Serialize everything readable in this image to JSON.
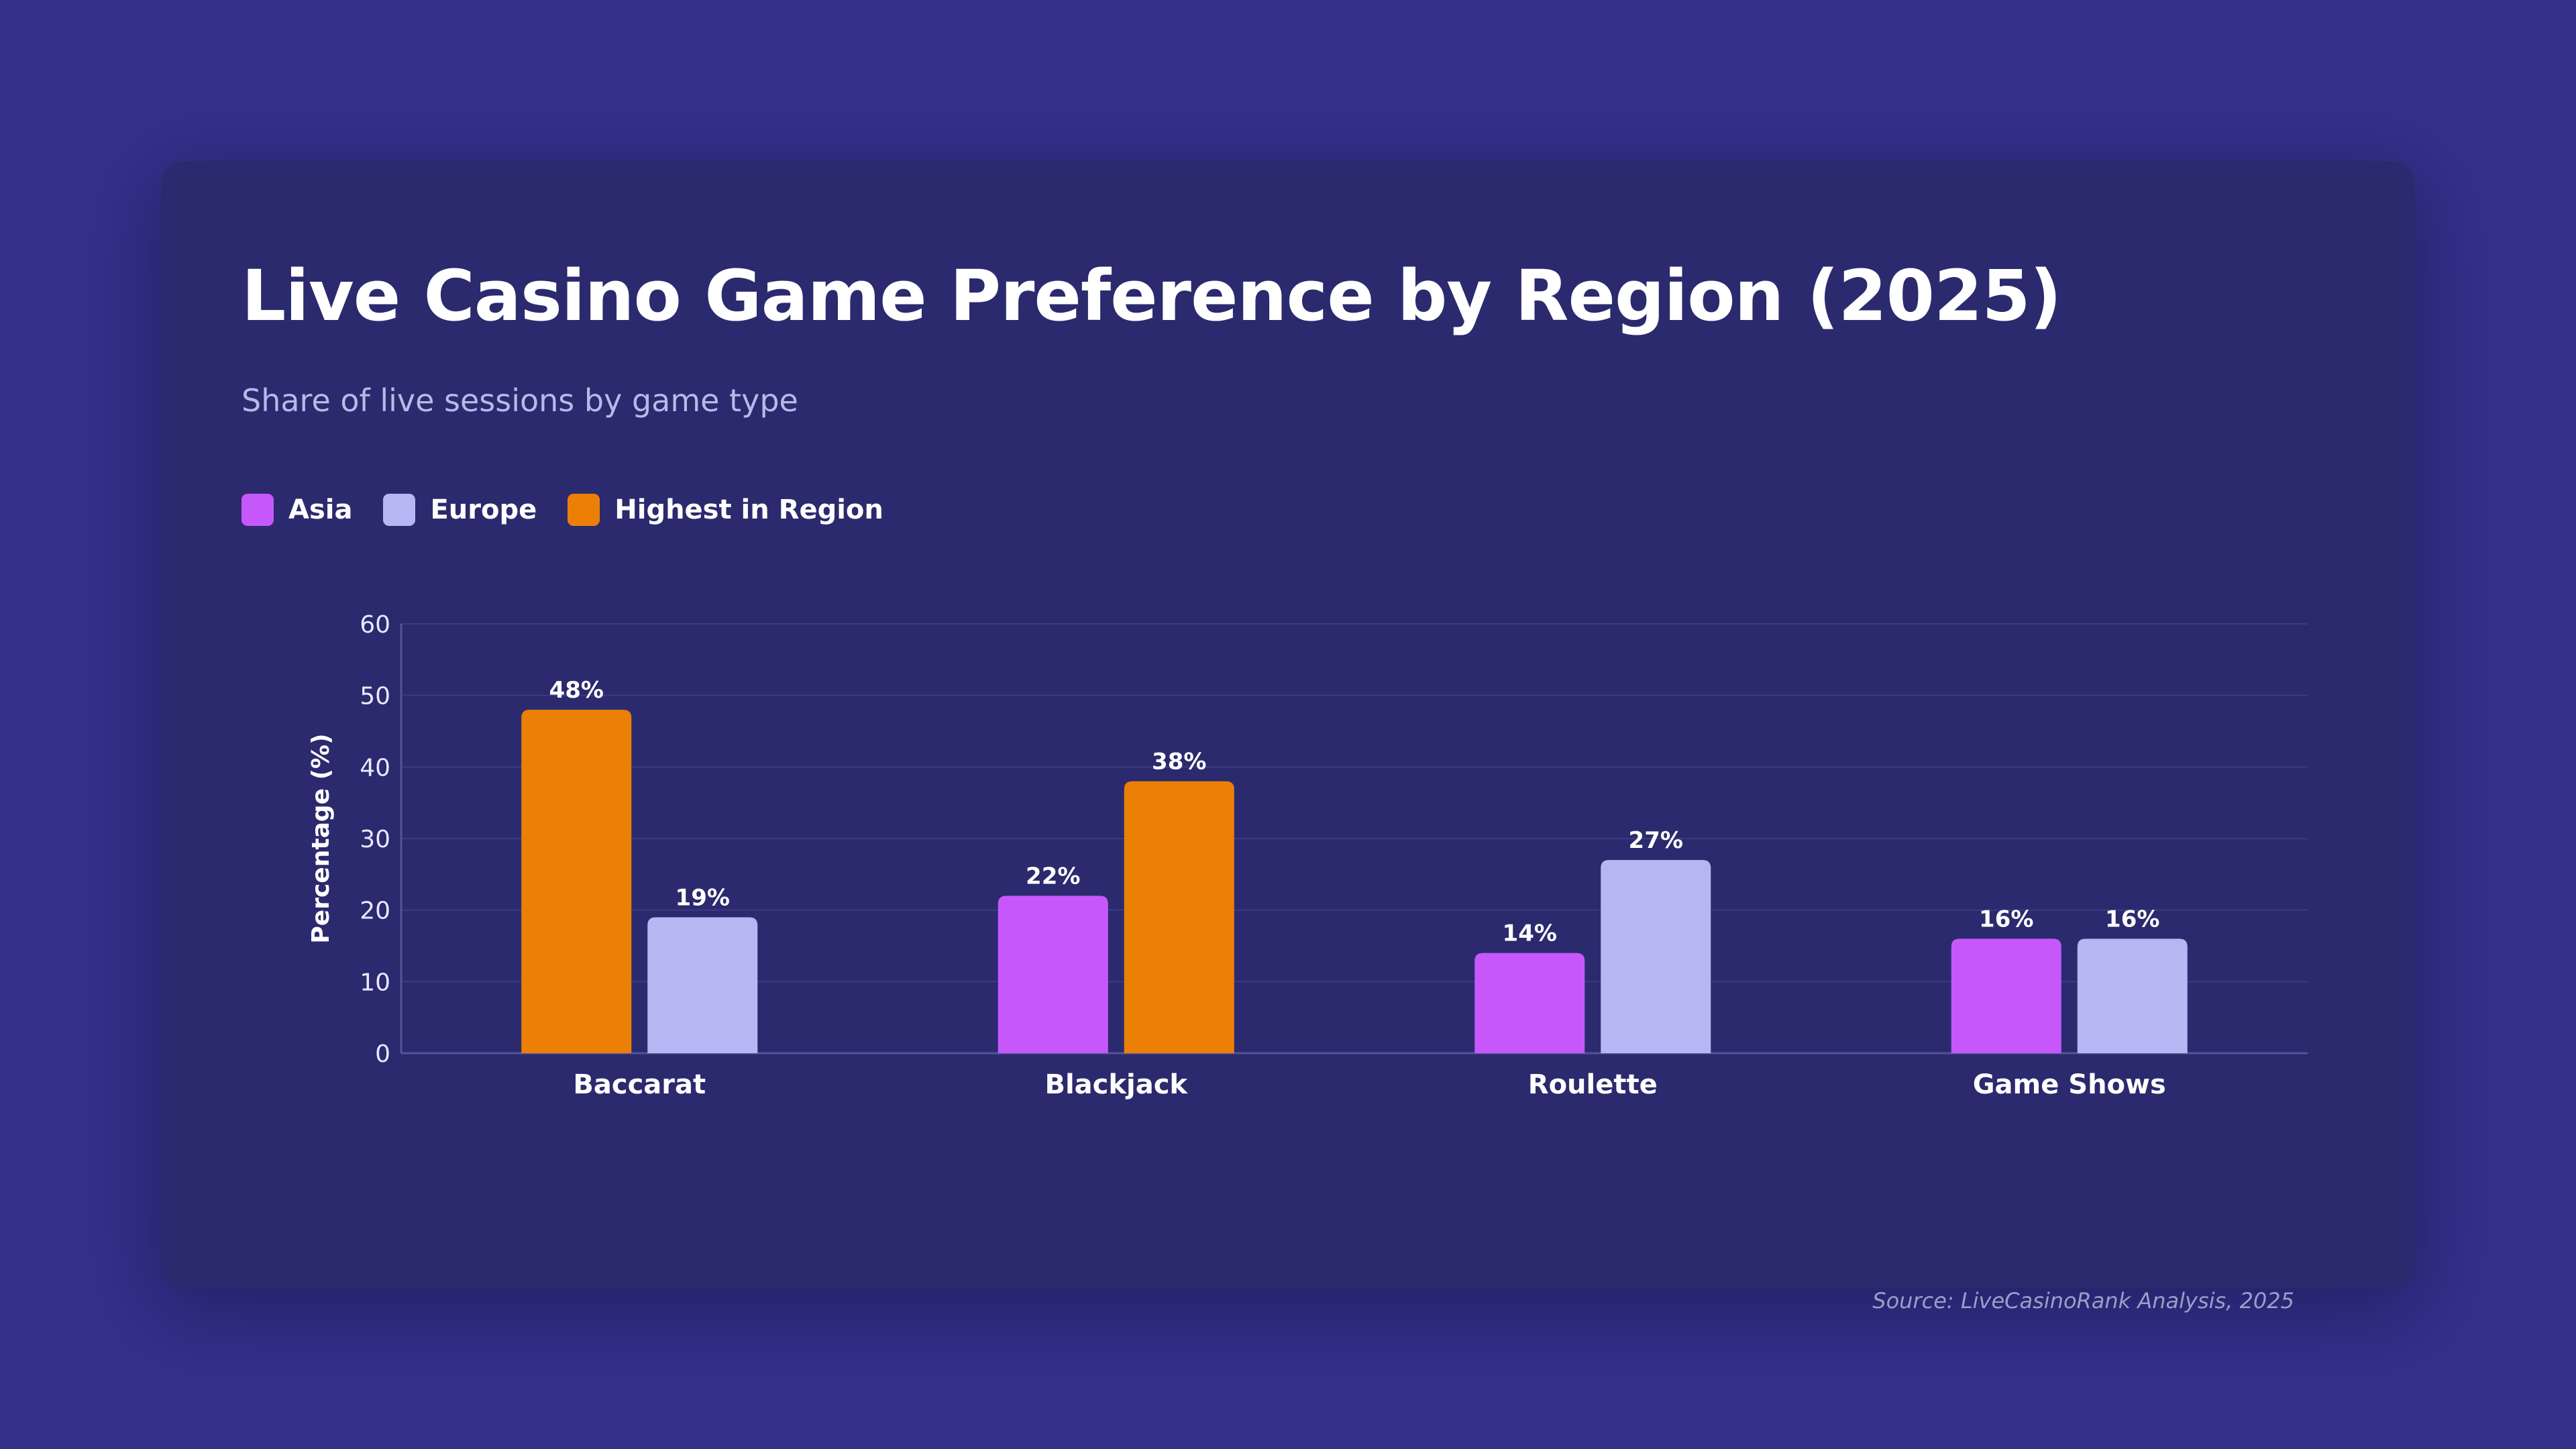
{
  "colors": {
    "asia": "#c658fb",
    "europe": "#b6b6f2",
    "highest": "#ec8006",
    "grid": "#3c3b80",
    "axis": "#55549a"
  },
  "chart_data": {
    "type": "bar",
    "title": "Live Casino Game Preference by Region (2025)",
    "subtitle": "Share of live sessions by game type",
    "ylabel": "Percentage (%)",
    "xlabel": "",
    "ylim": [
      0,
      60
    ],
    "yticks": [
      "0",
      "10",
      "20",
      "30",
      "40",
      "50",
      "60"
    ],
    "categories": [
      "Baccarat",
      "Blackjack",
      "Roulette",
      "Game Shows"
    ],
    "series": [
      {
        "name": "Asia",
        "values": [
          48,
          22,
          14,
          16
        ],
        "labels": [
          "48%",
          "22%",
          "14%",
          "16%"
        ]
      },
      {
        "name": "Europe",
        "values": [
          19,
          38,
          27,
          16
        ],
        "labels": [
          "19%",
          "38%",
          "27%",
          "16%"
        ]
      }
    ],
    "highlight_rule": "Highest in Region",
    "highlight": [
      [
        true,
        false
      ],
      [
        false,
        true
      ],
      [
        false,
        false
      ],
      [
        false,
        false
      ]
    ],
    "legend": [
      "Asia",
      "Europe",
      "Highest in Region"
    ],
    "grid": true,
    "legend_position": "top-left"
  },
  "source": "Source: LiveCasinoRank Analysis, 2025"
}
